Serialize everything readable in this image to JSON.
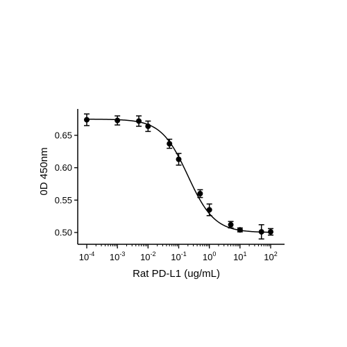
{
  "chart_data": {
    "type": "scatter",
    "title": "",
    "xlabel": "Rat PD-L1 (ug/mL)",
    "ylabel": "0D 450nm",
    "x_scale": "log",
    "xlim": [
      0.0001,
      100
    ],
    "ylim": [
      0.49,
      0.69
    ],
    "x_ticks": [
      {
        "value": 0.0001,
        "base": "10",
        "exp": "-4"
      },
      {
        "value": 0.001,
        "base": "10",
        "exp": "-3"
      },
      {
        "value": 0.01,
        "base": "10",
        "exp": "-2"
      },
      {
        "value": 0.1,
        "base": "10",
        "exp": "-1"
      },
      {
        "value": 1,
        "base": "10",
        "exp": "0"
      },
      {
        "value": 10,
        "base": "10",
        "exp": "1"
      },
      {
        "value": 100,
        "base": "10",
        "exp": "2"
      }
    ],
    "y_ticks": [
      "0.50",
      "0.55",
      "0.60",
      "0.65"
    ],
    "grid": false,
    "legend": "none",
    "color": "#000000",
    "series": [
      {
        "points": [
          {
            "x": 0.0001,
            "y": 0.674,
            "err": 0.009
          },
          {
            "x": 0.001,
            "y": 0.673,
            "err": 0.007
          },
          {
            "x": 0.005,
            "y": 0.672,
            "err": 0.008
          },
          {
            "x": 0.01,
            "y": 0.664,
            "err": 0.008
          },
          {
            "x": 0.05,
            "y": 0.637,
            "err": 0.007
          },
          {
            "x": 0.1,
            "y": 0.613,
            "err": 0.009
          },
          {
            "x": 0.5,
            "y": 0.56,
            "err": 0.006
          },
          {
            "x": 1,
            "y": 0.535,
            "err": 0.009
          },
          {
            "x": 5,
            "y": 0.512,
            "err": 0.005
          },
          {
            "x": 10,
            "y": 0.504,
            "err": 0.003
          },
          {
            "x": 50,
            "y": 0.501,
            "err": 0.011
          },
          {
            "x": 100,
            "y": 0.501,
            "err": 0.005
          }
        ],
        "fit": {
          "model": "4PL",
          "top": 0.675,
          "bottom": 0.5,
          "ec50": 0.2,
          "hill": 1.0
        }
      }
    ]
  }
}
